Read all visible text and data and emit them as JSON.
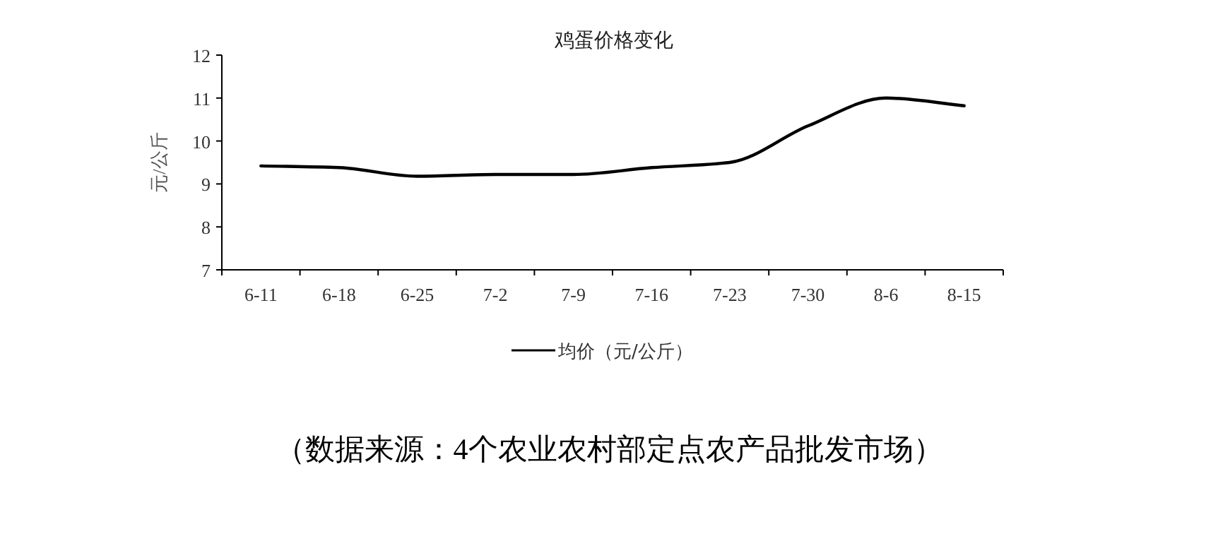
{
  "chart_data": {
    "type": "line",
    "title": "鸡蛋价格变化",
    "ylabel": "元/公斤",
    "categories": [
      "6-11",
      "6-18",
      "6-25",
      "7-2",
      "7-9",
      "7-16",
      "7-23",
      "7-30",
      "8-6",
      "8-15"
    ],
    "series": [
      {
        "name": "均价（元/公斤）",
        "color": "#000000",
        "values": [
          9.42,
          9.38,
          9.18,
          9.22,
          9.22,
          9.38,
          9.5,
          10.35,
          11.0,
          10.82
        ]
      }
    ],
    "ylim": [
      7,
      12
    ],
    "yticks": [
      7,
      8,
      9,
      10,
      11,
      12
    ],
    "grid": false,
    "legend": "bottom",
    "marker": "none",
    "line_style": "solid",
    "annotations": [
      "（数据来源：4个农业农村部定点农产品批发市场）"
    ]
  }
}
